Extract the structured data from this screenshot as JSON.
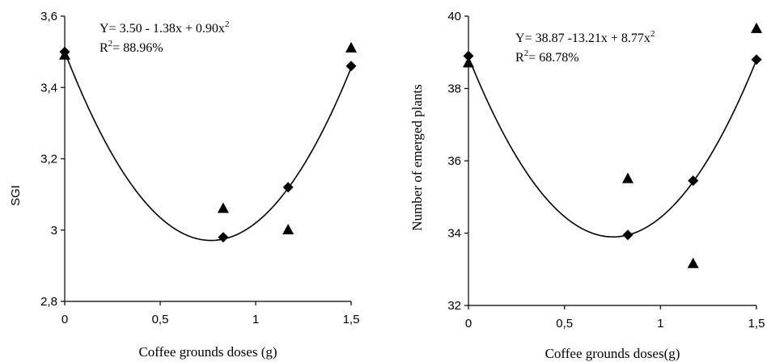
{
  "chart_data": [
    {
      "type": "scatter",
      "xlabel": "Coffee grounds doses (g)",
      "ylabel": "SGI",
      "xlim": [
        0,
        1.5
      ],
      "ylim": [
        2.8,
        3.6
      ],
      "xticks": [
        "0",
        "0,5",
        "1",
        "1,5"
      ],
      "yticks": [
        "2,8",
        "3",
        "3,2",
        "3,4",
        "3,6"
      ],
      "equation": "Y= 3.50 - 1.38x + 0.90x2",
      "equation_parts": {
        "main": "Y= 3.50 - 1.38x + 0.90x",
        "sup": "2"
      },
      "r2": {
        "pre": "R",
        "sup": "2",
        "post": "= 88.96%"
      },
      "fit": {
        "a": 3.5,
        "b": -1.38,
        "c": 0.9
      },
      "series": [
        {
          "marker": "diamond",
          "x": [
            0,
            0.83,
            1.17,
            1.5
          ],
          "y": [
            3.5,
            2.98,
            3.12,
            3.46
          ]
        },
        {
          "marker": "triangle",
          "x": [
            0,
            0.83,
            1.17,
            1.5
          ],
          "y": [
            3.49,
            3.06,
            3.0,
            3.51
          ]
        }
      ]
    },
    {
      "type": "scatter",
      "xlabel": "Coffee grounds doses(g)",
      "ylabel": "Number of emerged plants",
      "xlim": [
        0,
        1.5
      ],
      "ylim": [
        32,
        40
      ],
      "xticks": [
        "0",
        "0,5",
        "1",
        "1,5"
      ],
      "yticks": [
        "32",
        "34",
        "36",
        "38",
        "40"
      ],
      "equation": "Y= 38.87 -13.21x + 8.77x2",
      "equation_parts": {
        "main": "Y= 38.87 -13.21x + 8.77x",
        "sup": "2"
      },
      "r2": {
        "pre": "R",
        "sup": "2",
        "post": "= 68.78%"
      },
      "fit": {
        "a": 38.87,
        "b": -13.21,
        "c": 8.77
      },
      "series": [
        {
          "marker": "diamond",
          "x": [
            0,
            0.83,
            1.17,
            1.5
          ],
          "y": [
            38.9,
            33.95,
            35.45,
            38.8
          ]
        },
        {
          "marker": "triangle",
          "x": [
            0,
            0.83,
            1.17,
            1.5
          ],
          "y": [
            38.7,
            35.5,
            33.15,
            39.65
          ]
        }
      ]
    }
  ]
}
